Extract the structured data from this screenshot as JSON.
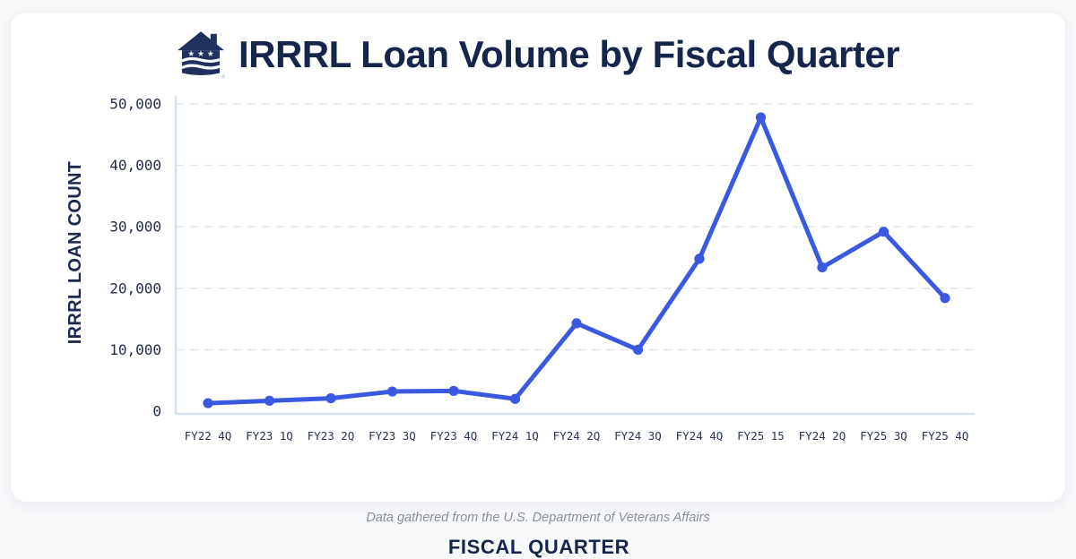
{
  "header": {
    "title": "IRRRL Loan Volume by Fiscal Quarter",
    "logo": "house-with-stars-and-waves-logo",
    "registered_mark": "®"
  },
  "page": {
    "footer": "Data gathered from the U.S. Department of Veterans Affairs"
  },
  "chart_data": {
    "type": "line",
    "title": "IRRRL Loan Volume by Fiscal Quarter",
    "xlabel": "FISCAL QUARTER",
    "ylabel": "IRRRL LOAN COUNT",
    "categories": [
      "FY22 4Q",
      "FY23 1Q",
      "FY23 2Q",
      "FY23 3Q",
      "FY23 4Q",
      "FY24 1Q",
      "FY24 2Q",
      "FY24 3Q",
      "FY24 4Q",
      "FY25 15",
      "FY24 2Q",
      "FY25 3Q",
      "FY25 4Q"
    ],
    "series": [
      {
        "name": "IRRRL loan count",
        "values": [
          1300,
          1700,
          2100,
          3200,
          3300,
          2000,
          14300,
          10000,
          24800,
          47800,
          23400,
          29200,
          18400
        ]
      }
    ],
    "ylim": [
      0,
      50000
    ],
    "yticks": [
      0,
      10000,
      20000,
      30000,
      40000,
      50000
    ],
    "ytick_labels": [
      "0",
      "10,000",
      "20,000",
      "30,000",
      "40,000",
      "50,000"
    ],
    "grid": "horizontal-dashed",
    "legend": "none",
    "colors": {
      "line": "#3b59e0",
      "marker": "#3b59e0",
      "grid": "#dfe7f2",
      "axis": "#d3e1f1",
      "navy_text": "#16254c",
      "tick_text": "#232d4b",
      "footer_text": "#8a8e98"
    }
  }
}
